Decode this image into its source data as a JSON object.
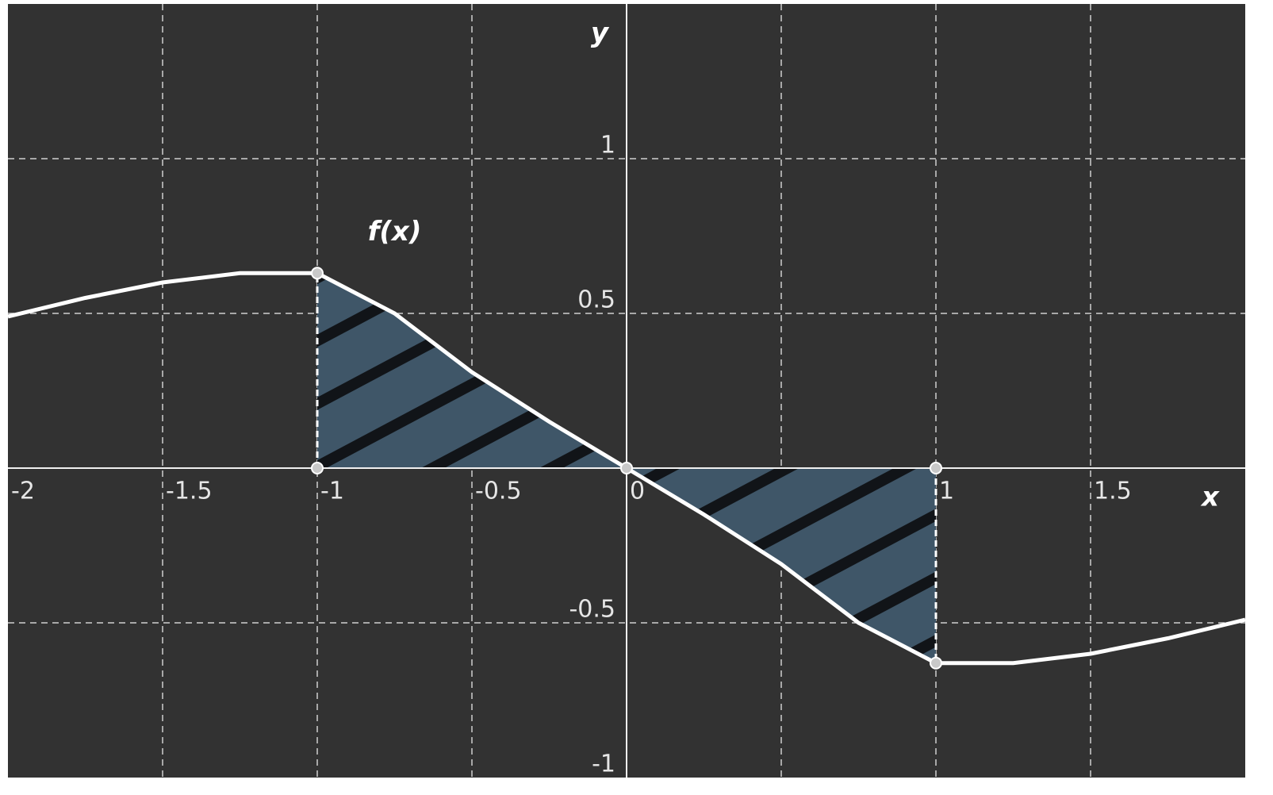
{
  "chart_data": {
    "type": "line",
    "x_label": "x",
    "y_label": "y",
    "xlim": [
      -2,
      2
    ],
    "ylim": [
      -1,
      1.5
    ],
    "xticks": [
      -2,
      -1.5,
      -1,
      -0.5,
      0,
      1,
      1.5
    ],
    "yticks": [
      -1,
      -0.5,
      0.5,
      1
    ],
    "xgrid": [
      -1.5,
      -1,
      -0.5,
      0.5,
      1,
      1.5
    ],
    "ygrid": [
      -0.5,
      0.5,
      1
    ],
    "grid": true,
    "shade": {
      "from": -1,
      "to": 1
    },
    "series": [
      {
        "name": "f(x)",
        "color": "#ffffff",
        "x": [
          -2,
          -1.75,
          -1.5,
          -1.25,
          -1,
          -0.75,
          -0.5,
          -0.25,
          0,
          0.25,
          0.5,
          0.75,
          1,
          1.25,
          1.5,
          1.75,
          2
        ],
        "values": [
          0.49,
          0.55,
          0.6,
          0.63,
          0.63,
          0.5,
          0.31,
          0.15,
          0,
          -0.15,
          -0.31,
          -0.5,
          -0.63,
          -0.63,
          -0.6,
          -0.55,
          -0.49
        ]
      }
    ]
  }
}
